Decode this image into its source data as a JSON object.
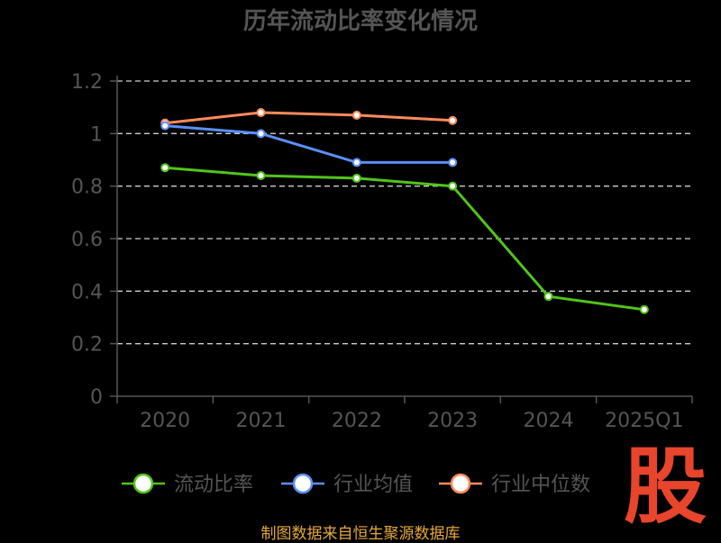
{
  "chart_data": {
    "type": "line",
    "title": "历年流动比率变化情况",
    "categories": [
      "2020",
      "2021",
      "2022",
      "2023",
      "2024",
      "2025Q1"
    ],
    "ylim": [
      0,
      1.2
    ],
    "yticks": [
      "0",
      "0.2",
      "0.4",
      "0.6",
      "0.8",
      "1",
      "1.2"
    ],
    "grid": true,
    "legend_position": "bottom",
    "series": [
      {
        "name": "流动比率",
        "color": "#52c41a",
        "values": [
          0.87,
          0.84,
          0.83,
          0.8,
          0.38,
          0.33
        ]
      },
      {
        "name": "行业均值",
        "color": "#5b8ff9",
        "values": [
          1.03,
          1.0,
          0.89,
          0.89,
          null,
          null
        ]
      },
      {
        "name": "行业中位数",
        "color": "#ff8a5c",
        "values": [
          1.04,
          1.08,
          1.07,
          1.05,
          null,
          null
        ]
      }
    ]
  },
  "watermark": {
    "text": "股",
    "color": "#e8452c"
  },
  "source": "制图数据来自恒生聚源数据库"
}
